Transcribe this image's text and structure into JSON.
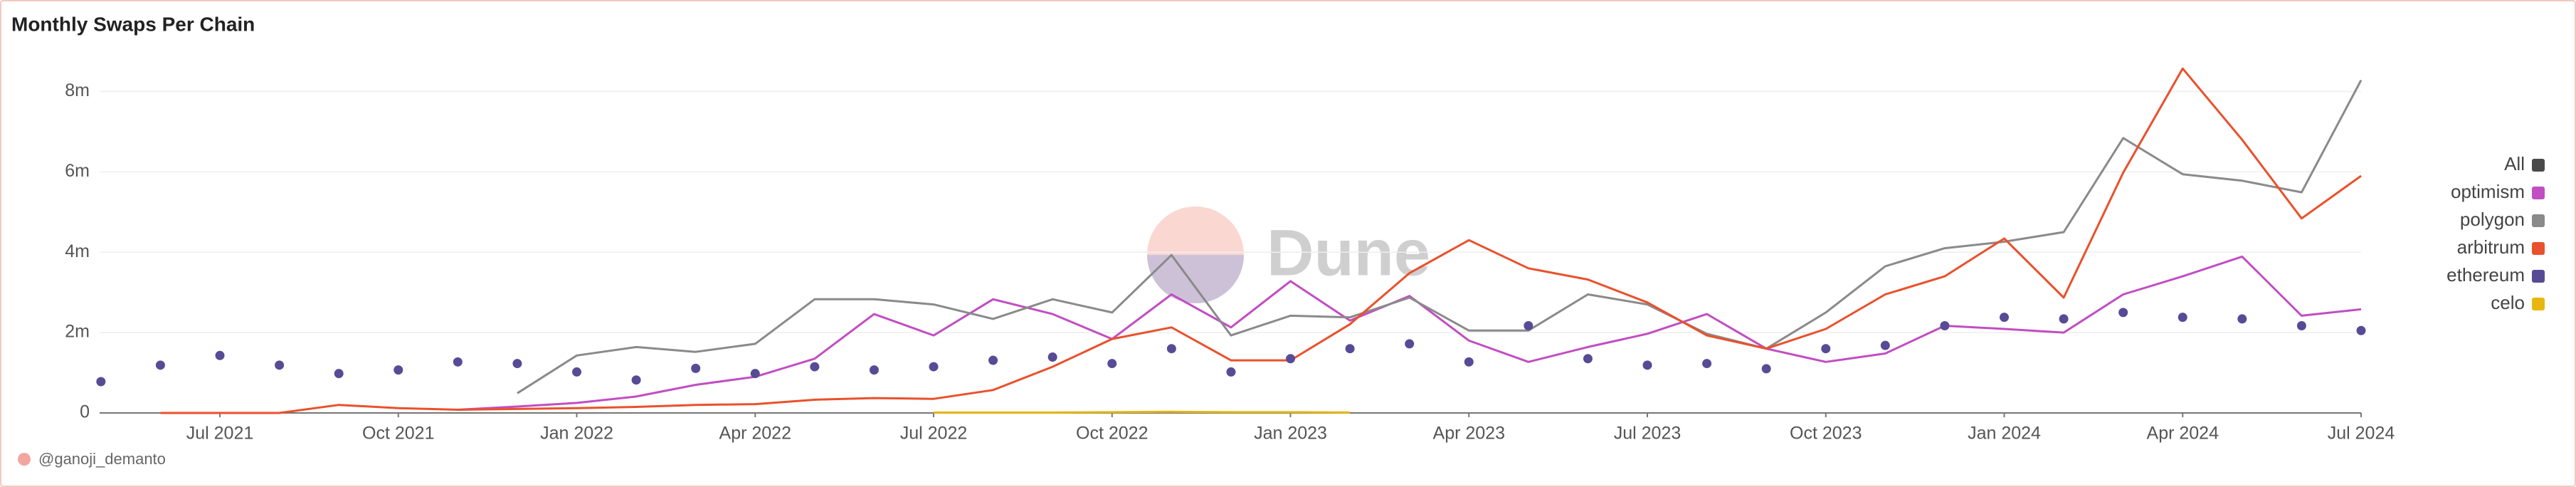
{
  "chart_data": {
    "type": "line",
    "title": "Monthly Swaps Per Chain",
    "watermark": "Dune",
    "author": "@ganoji_demanto",
    "x": [
      "2021-05",
      "2021-06",
      "2021-07",
      "2021-08",
      "2021-09",
      "2021-10",
      "2021-11",
      "2021-12",
      "2022-01",
      "2022-02",
      "2022-03",
      "2022-04",
      "2022-05",
      "2022-06",
      "2022-07",
      "2022-08",
      "2022-09",
      "2022-10",
      "2022-11",
      "2022-12",
      "2023-01",
      "2023-02",
      "2023-03",
      "2023-04",
      "2023-05",
      "2023-06",
      "2023-07",
      "2023-08",
      "2023-09",
      "2023-10",
      "2023-11",
      "2023-12",
      "2024-01",
      "2024-02",
      "2024-03",
      "2024-04",
      "2024-05",
      "2024-06",
      "2024-07"
    ],
    "xticks": [
      {
        "value": "2021-07",
        "label": "Jul 2021"
      },
      {
        "value": "2021-10",
        "label": "Oct 2021"
      },
      {
        "value": "2022-01",
        "label": "Jan 2022"
      },
      {
        "value": "2022-04",
        "label": "Apr 2022"
      },
      {
        "value": "2022-07",
        "label": "Jul 2022"
      },
      {
        "value": "2022-10",
        "label": "Oct 2022"
      },
      {
        "value": "2023-01",
        "label": "Jan 2023"
      },
      {
        "value": "2023-04",
        "label": "Apr 2023"
      },
      {
        "value": "2023-07",
        "label": "Jul 2023"
      },
      {
        "value": "2023-10",
        "label": "Oct 2023"
      },
      {
        "value": "2024-01",
        "label": "Jan 2024"
      },
      {
        "value": "2024-04",
        "label": "Apr 2024"
      },
      {
        "value": "2024-07",
        "label": "Jul 2024"
      }
    ],
    "ylim": [
      0,
      9
    ],
    "yticks": [
      0,
      {
        "value": 2,
        "label": "2m"
      },
      {
        "value": 4,
        "label": "4m"
      },
      {
        "value": 6,
        "label": "6m"
      },
      {
        "value": 8,
        "label": "8m"
      }
    ],
    "grid": true,
    "legend": "right",
    "series": [
      {
        "name": "All",
        "color": "#4a4a4a",
        "values": [
          null,
          null,
          null,
          null,
          null,
          null,
          null,
          null,
          null,
          null,
          null,
          null,
          null,
          null,
          null,
          null,
          null,
          null,
          null,
          null,
          null,
          null,
          null,
          null,
          null,
          null,
          null,
          null,
          null,
          null,
          null,
          null,
          null,
          null,
          null,
          null,
          null,
          null,
          null
        ]
      },
      {
        "name": "optimism",
        "color": "#c14ec2",
        "values": [
          null,
          null,
          null,
          null,
          null,
          null,
          0.08,
          0.16,
          0.25,
          0.41,
          0.7,
          0.9,
          1.35,
          2.46,
          1.93,
          2.83,
          2.46,
          1.84,
          2.95,
          2.13,
          3.28,
          2.3,
          2.91,
          1.8,
          1.27,
          1.64,
          1.97,
          2.46,
          1.6,
          1.27,
          1.48,
          2.17,
          2.09,
          2.0,
          2.95,
          3.4,
          3.89,
          2.42,
          2.58
        ]
      },
      {
        "name": "polygon",
        "color": "#8a8a8a",
        "values": [
          null,
          null,
          null,
          null,
          null,
          null,
          null,
          0.49,
          1.43,
          1.64,
          1.52,
          1.72,
          2.83,
          2.83,
          2.7,
          2.34,
          2.83,
          2.5,
          3.93,
          1.93,
          2.42,
          2.38,
          2.87,
          2.05,
          2.05,
          2.95,
          2.7,
          1.97,
          1.6,
          2.5,
          3.65,
          4.1,
          4.26,
          4.5,
          6.84,
          5.94,
          5.78,
          5.49,
          8.28
        ]
      },
      {
        "name": "arbitrum",
        "color": "#e9512c",
        "values": [
          null,
          0,
          0,
          0,
          0.2,
          0.12,
          0.08,
          0.1,
          0.12,
          0.15,
          0.2,
          0.22,
          0.33,
          0.37,
          0.35,
          0.57,
          1.15,
          1.84,
          2.13,
          1.31,
          1.31,
          2.21,
          3.48,
          4.3,
          3.6,
          3.32,
          2.75,
          1.93,
          1.6,
          2.09,
          2.95,
          3.4,
          4.34,
          2.87,
          5.98,
          8.57,
          6.8,
          4.84,
          5.9
        ]
      },
      {
        "name": "ethereum",
        "color": "#574b96",
        "mode": "markers",
        "values": [
          0.78,
          1.19,
          1.43,
          1.19,
          0.98,
          1.07,
          1.27,
          1.23,
          1.02,
          0.82,
          1.11,
          0.98,
          1.15,
          1.07,
          1.15,
          1.31,
          1.39,
          1.23,
          1.6,
          1.02,
          1.35,
          1.6,
          1.72,
          1.27,
          2.17,
          1.35,
          1.19,
          1.23,
          1.1,
          1.6,
          1.68,
          2.17,
          2.38,
          2.34,
          2.5,
          2.38,
          2.34,
          2.17,
          2.05
        ]
      },
      {
        "name": "celo",
        "color": "#e8b70f",
        "values": [
          null,
          null,
          null,
          null,
          null,
          null,
          null,
          null,
          null,
          null,
          null,
          null,
          null,
          null,
          0.01,
          0.01,
          0.01,
          0.02,
          0.03,
          0.02,
          0.02,
          0.01,
          null,
          null,
          null,
          null,
          null,
          null,
          null,
          null,
          null,
          null,
          null,
          null,
          null,
          null,
          null,
          null,
          null
        ]
      }
    ]
  }
}
